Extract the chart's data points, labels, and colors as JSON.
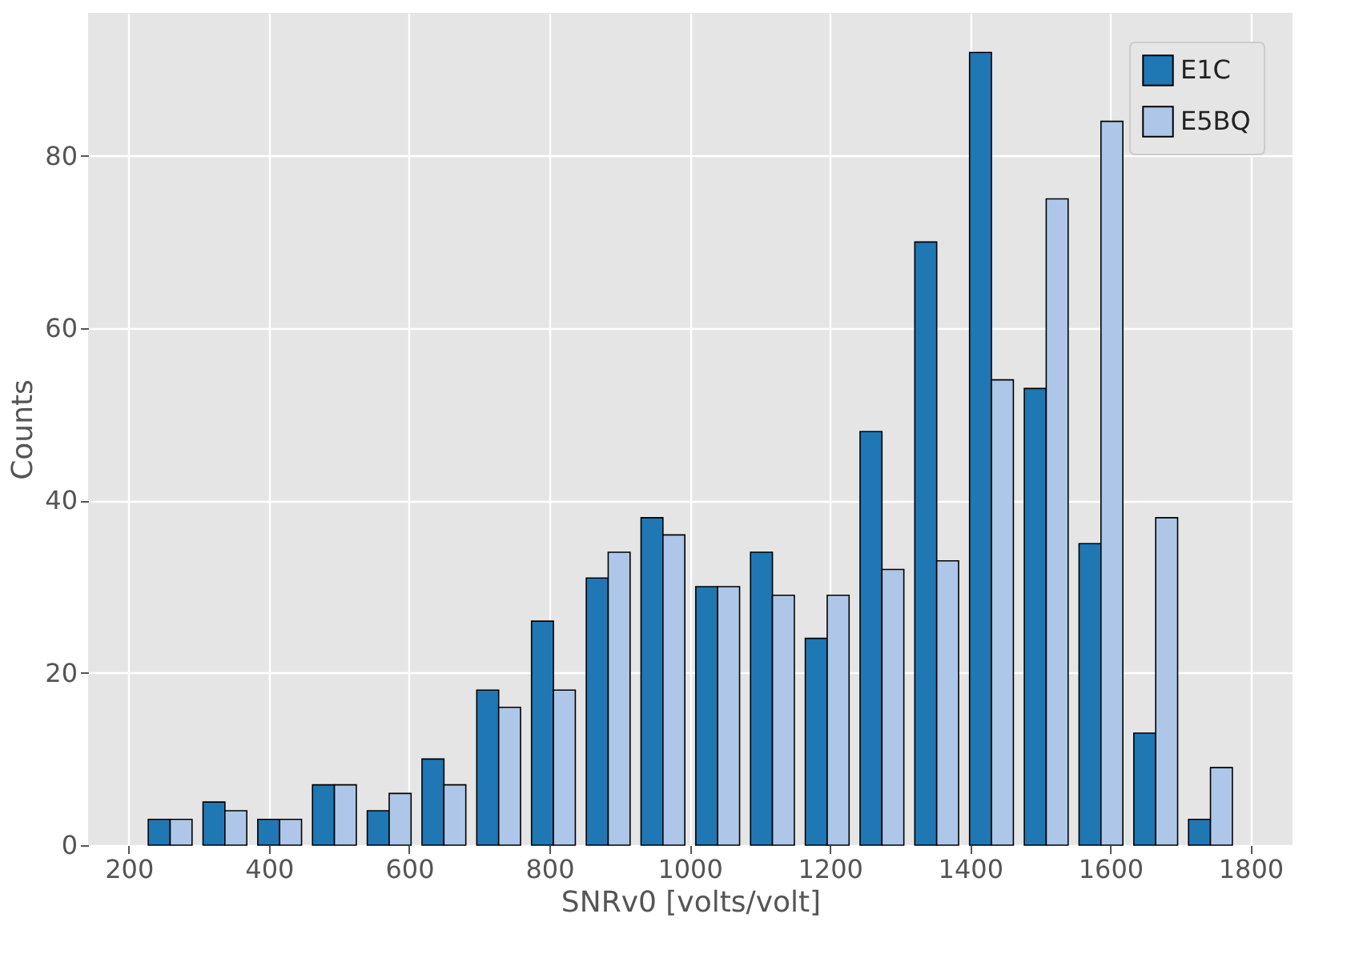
{
  "chart_data": {
    "type": "histogram",
    "xlabel": "SNRv0 [volts/volt]",
    "ylabel": "Counts",
    "bins": [
      220.0,
      298.1,
      376.2,
      454.3,
      532.4,
      610.5,
      688.6,
      766.7,
      844.8,
      922.9,
      1001.0,
      1079.1,
      1157.2,
      1235.3,
      1313.4,
      1391.5,
      1469.6,
      1547.7,
      1625.8,
      1703.9,
      1782.0
    ],
    "series": [
      {
        "name": "E1C",
        "color": "#1f77b4",
        "values": [
          3,
          5,
          3,
          7,
          4,
          10,
          18,
          26,
          31,
          38,
          30,
          34,
          24,
          48,
          70,
          92,
          53,
          35,
          13,
          3
        ]
      },
      {
        "name": "E5BQ",
        "color": "#aec7e8",
        "values": [
          3,
          4,
          3,
          7,
          6,
          7,
          16,
          18,
          34,
          36,
          30,
          29,
          29,
          32,
          33,
          54,
          75,
          84,
          38,
          9
        ]
      }
    ],
    "xlim": [
      142,
      1860
    ],
    "ylim": [
      0,
      96.6
    ],
    "xticks": [
      200,
      400,
      600,
      800,
      1000,
      1200,
      1400,
      1600,
      1800
    ],
    "yticks": [
      0,
      20,
      40,
      60,
      80
    ],
    "grid": true,
    "legend": "top right"
  }
}
